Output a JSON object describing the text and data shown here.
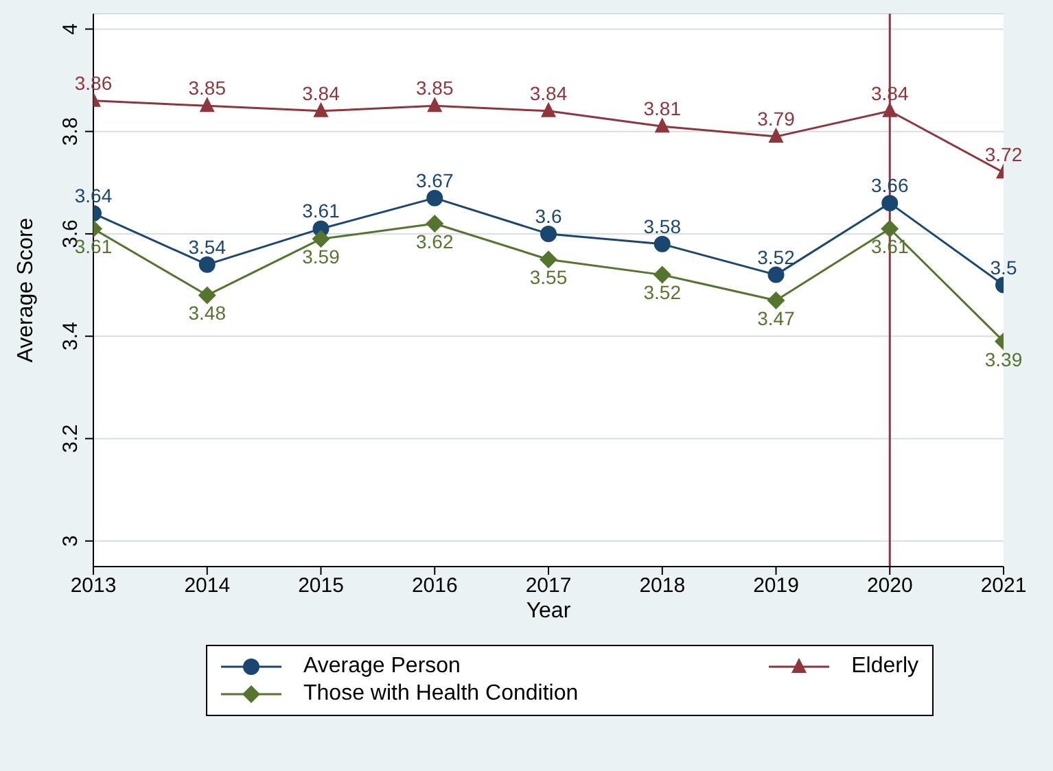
{
  "chart_data": {
    "type": "line",
    "xlabel": "Year",
    "ylabel": "Average Score",
    "x": [
      2013,
      2014,
      2015,
      2016,
      2017,
      2018,
      2019,
      2020,
      2021
    ],
    "xlim": [
      2013,
      2021
    ],
    "xticks": [
      2013,
      2014,
      2015,
      2016,
      2017,
      2018,
      2019,
      2020,
      2021
    ],
    "ylim": [
      2.95,
      4.03
    ],
    "yticks": [
      3,
      3.2,
      3.4,
      3.6,
      3.8,
      4
    ],
    "grid": "y",
    "legend": "bottom",
    "data_labels": true,
    "series": [
      {
        "name": "Average Person",
        "color": "#1a476f",
        "marker": "circle",
        "values": [
          3.64,
          3.54,
          3.61,
          3.67,
          3.6,
          3.58,
          3.52,
          3.66,
          3.5
        ]
      },
      {
        "name": "Elderly",
        "color": "#90353b",
        "marker": "triangle",
        "values": [
          3.86,
          3.85,
          3.84,
          3.85,
          3.84,
          3.81,
          3.79,
          3.84,
          3.72
        ]
      },
      {
        "name": "Those with Health Condition",
        "color": "#55752f",
        "marker": "diamond",
        "values": [
          3.61,
          3.48,
          3.59,
          3.62,
          3.55,
          3.52,
          3.47,
          3.61,
          3.39
        ]
      }
    ],
    "ref_lines": [
      {
        "axis": "x",
        "value": 2020,
        "color": "#90353b"
      }
    ]
  }
}
